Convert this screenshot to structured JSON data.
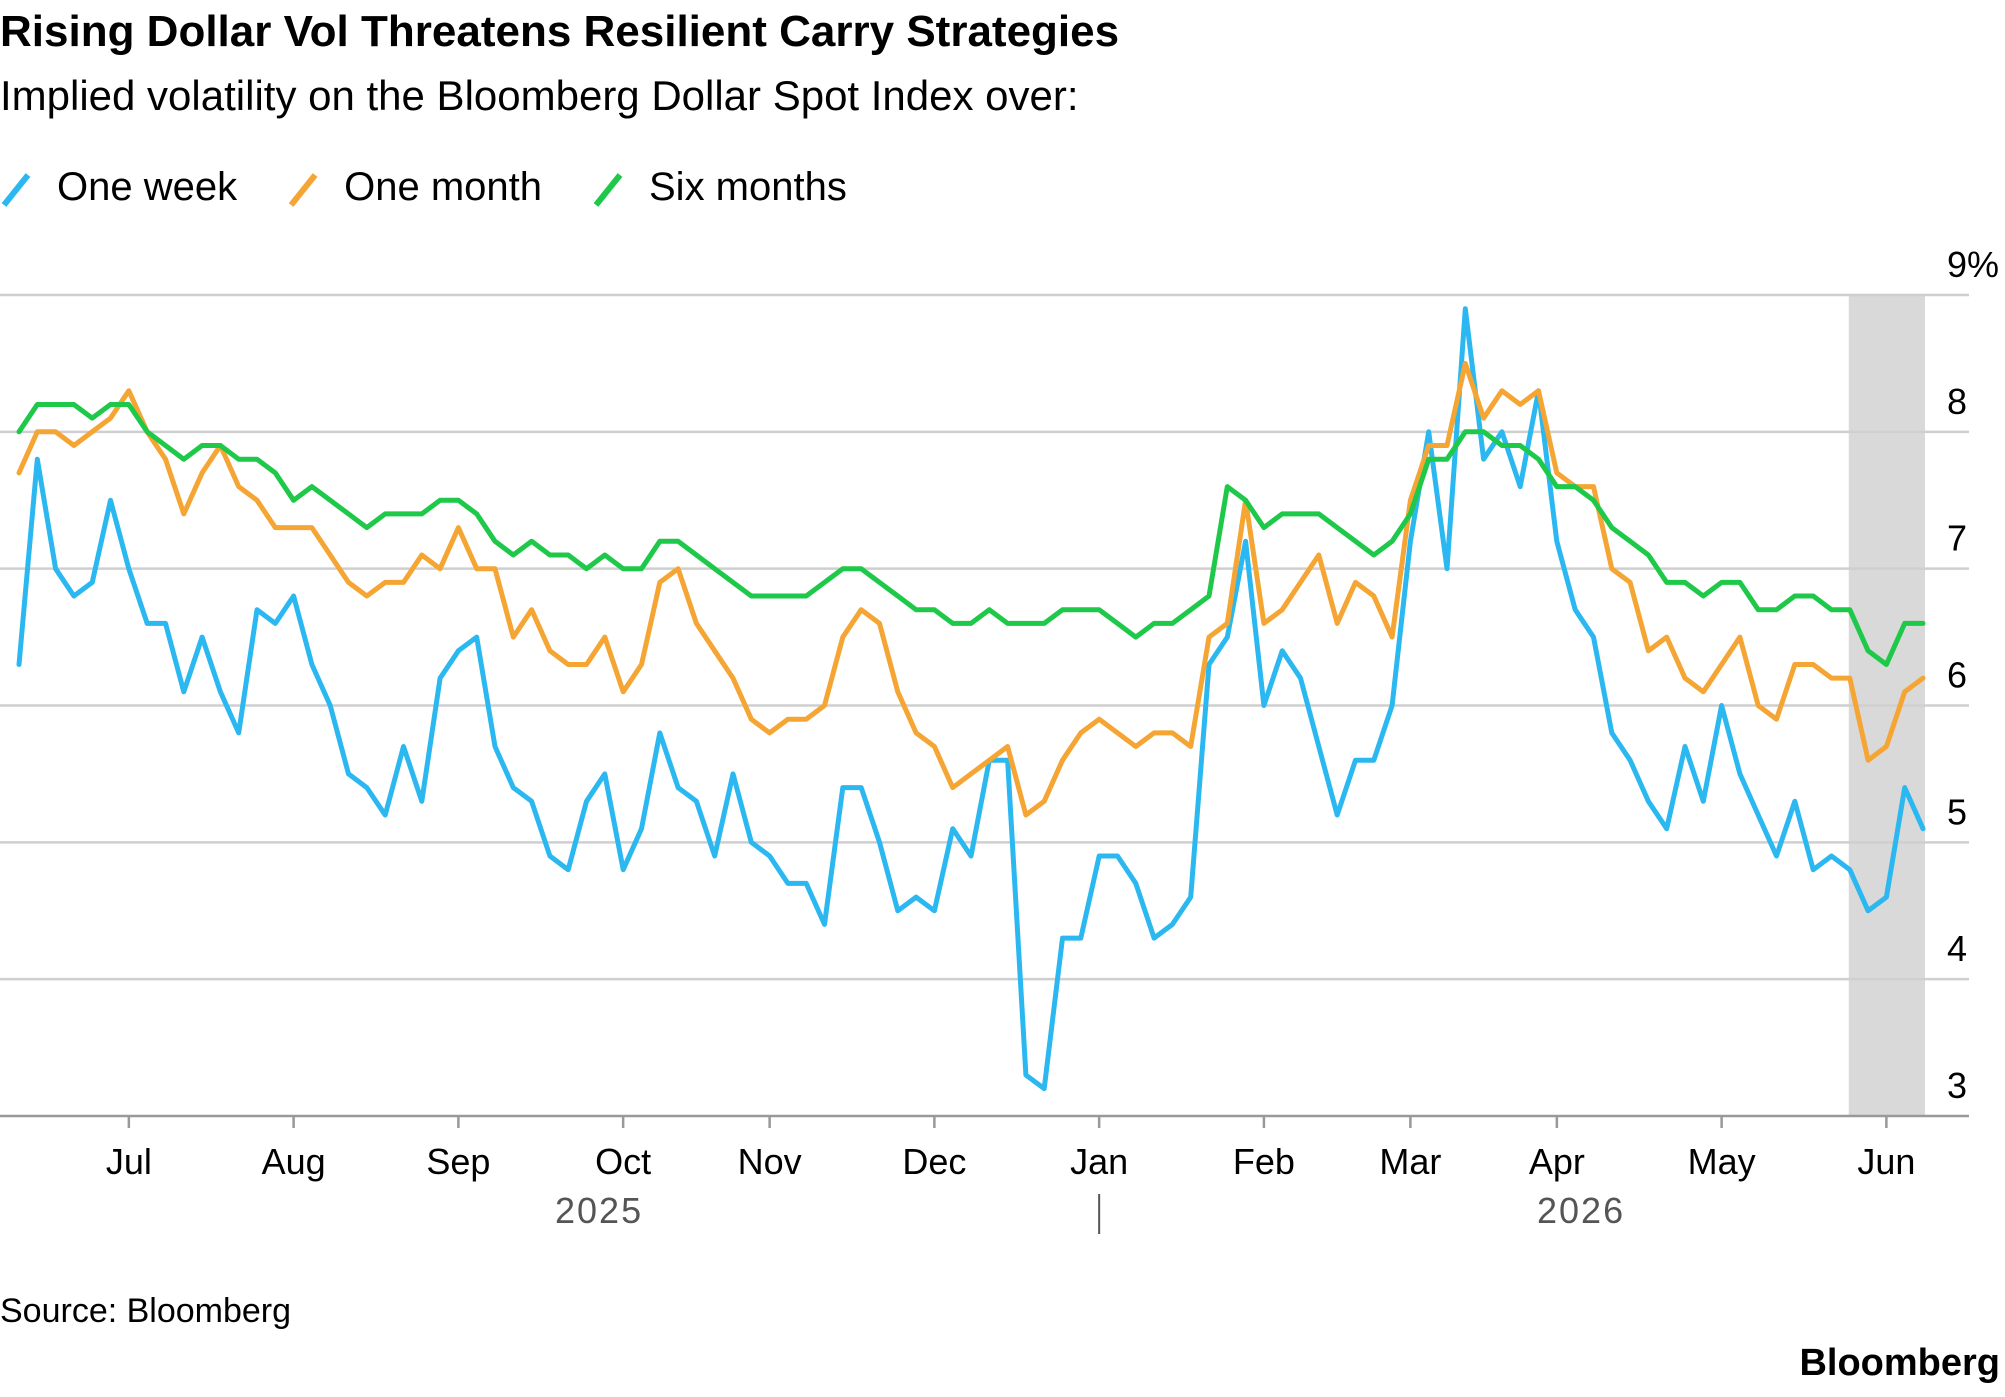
{
  "chart_data": {
    "type": "line",
    "title": "Rising Dollar Vol Threatens Resilient Carry Strategies",
    "subtitle": "Implied volatility on the Bloomberg Dollar Spot Index over:",
    "source": "Source: Bloomberg",
    "brand": "Bloomberg",
    "years": [
      "2025",
      "2026"
    ],
    "categories": [
      null,
      null,
      null,
      null,
      null,
      null,
      "Jul",
      null,
      null,
      null,
      null,
      null,
      null,
      null,
      null,
      "Aug",
      null,
      null,
      null,
      null,
      null,
      null,
      null,
      null,
      "Sep",
      null,
      null,
      null,
      null,
      null,
      null,
      null,
      null,
      "Oct",
      null,
      null,
      null,
      null,
      null,
      null,
      null,
      "Nov",
      null,
      null,
      null,
      null,
      null,
      null,
      null,
      null,
      "Dec",
      null,
      null,
      null,
      null,
      null,
      null,
      null,
      null,
      "Jan",
      null,
      null,
      null,
      null,
      null,
      null,
      null,
      null,
      "Feb",
      null,
      null,
      null,
      null,
      null,
      null,
      null,
      "Mar",
      null,
      null,
      null,
      null,
      null,
      null,
      null,
      "Apr",
      null,
      null,
      null,
      null,
      null,
      null,
      null,
      null,
      "May",
      null,
      null,
      null,
      null,
      null,
      null,
      null,
      null,
      "Jun",
      null,
      null
    ],
    "series": [
      {
        "name": "One week",
        "color": "#2bb8f0",
        "values": [
          6.3,
          7.8,
          7.0,
          6.8,
          6.9,
          7.5,
          7.0,
          6.6,
          6.6,
          6.1,
          6.5,
          6.1,
          5.8,
          6.7,
          6.6,
          6.8,
          6.3,
          6.0,
          5.5,
          5.4,
          5.2,
          5.7,
          5.3,
          6.2,
          6.4,
          6.5,
          5.7,
          5.4,
          5.3,
          4.9,
          4.8,
          5.3,
          5.5,
          4.8,
          5.1,
          5.8,
          5.4,
          5.3,
          4.9,
          5.5,
          5.0,
          4.9,
          4.7,
          4.7,
          4.4,
          5.4,
          5.4,
          5.0,
          4.5,
          4.6,
          4.5,
          5.1,
          4.9,
          5.6,
          5.6,
          3.3,
          3.2,
          4.3,
          4.3,
          4.9,
          4.9,
          4.7,
          4.3,
          4.4,
          4.6,
          6.3,
          6.5,
          7.2,
          6.0,
          6.4,
          6.2,
          5.7,
          5.2,
          5.6,
          5.6,
          6.0,
          7.2,
          8.0,
          7.0,
          8.9,
          7.8,
          8.0,
          7.6,
          8.3,
          7.2,
          6.7,
          6.5,
          5.8,
          5.6,
          5.3,
          5.1,
          5.7,
          5.3,
          6.0,
          5.5,
          5.2,
          4.9,
          5.3,
          4.8,
          4.9,
          4.8,
          4.5,
          4.6,
          5.4,
          5.1
        ]
      },
      {
        "name": "One month",
        "color": "#f5a533",
        "values": [
          7.7,
          8.0,
          8.0,
          7.9,
          8.0,
          8.1,
          8.3,
          8.0,
          7.8,
          7.4,
          7.7,
          7.9,
          7.6,
          7.5,
          7.3,
          7.3,
          7.3,
          7.1,
          6.9,
          6.8,
          6.9,
          6.9,
          7.1,
          7.0,
          7.3,
          7.0,
          7.0,
          6.5,
          6.7,
          6.4,
          6.3,
          6.3,
          6.5,
          6.1,
          6.3,
          6.9,
          7.0,
          6.6,
          6.4,
          6.2,
          5.9,
          5.8,
          5.9,
          5.9,
          6.0,
          6.5,
          6.7,
          6.6,
          6.1,
          5.8,
          5.7,
          5.4,
          5.5,
          5.6,
          5.7,
          5.2,
          5.3,
          5.6,
          5.8,
          5.9,
          5.8,
          5.7,
          5.8,
          5.8,
          5.7,
          6.5,
          6.6,
          7.5,
          6.6,
          6.7,
          6.9,
          7.1,
          6.6,
          6.9,
          6.8,
          6.5,
          7.5,
          7.9,
          7.9,
          8.5,
          8.1,
          8.3,
          8.2,
          8.3,
          7.7,
          7.6,
          7.6,
          7.0,
          6.9,
          6.4,
          6.5,
          6.2,
          6.1,
          6.3,
          6.5,
          6.0,
          5.9,
          6.3,
          6.3,
          6.2,
          6.2,
          5.6,
          5.7,
          6.1,
          6.2
        ]
      },
      {
        "name": "Six months",
        "color": "#1ec94a",
        "values": [
          8.0,
          8.2,
          8.2,
          8.2,
          8.1,
          8.2,
          8.2,
          8.0,
          7.9,
          7.8,
          7.9,
          7.9,
          7.8,
          7.8,
          7.7,
          7.5,
          7.6,
          7.5,
          7.4,
          7.3,
          7.4,
          7.4,
          7.4,
          7.5,
          7.5,
          7.4,
          7.2,
          7.1,
          7.2,
          7.1,
          7.1,
          7.0,
          7.1,
          7.0,
          7.0,
          7.2,
          7.2,
          7.1,
          7.0,
          6.9,
          6.8,
          6.8,
          6.8,
          6.8,
          6.9,
          7.0,
          7.0,
          6.9,
          6.8,
          6.7,
          6.7,
          6.6,
          6.6,
          6.7,
          6.6,
          6.6,
          6.6,
          6.7,
          6.7,
          6.7,
          6.6,
          6.5,
          6.6,
          6.6,
          6.7,
          6.8,
          7.6,
          7.5,
          7.3,
          7.4,
          7.4,
          7.4,
          7.3,
          7.2,
          7.1,
          7.2,
          7.4,
          7.8,
          7.8,
          8.0,
          8.0,
          7.9,
          7.9,
          7.8,
          7.6,
          7.6,
          7.5,
          7.3,
          7.2,
          7.1,
          6.9,
          6.9,
          6.8,
          6.9,
          6.9,
          6.7,
          6.7,
          6.8,
          6.8,
          6.7,
          6.7,
          6.4,
          6.3,
          6.6,
          6.6
        ]
      }
    ],
    "ylim": [
      3,
      9
    ],
    "yticks": [
      3,
      4,
      5,
      6,
      7,
      8,
      {
        "value": 9,
        "label": "9%"
      }
    ],
    "grid": true
  }
}
